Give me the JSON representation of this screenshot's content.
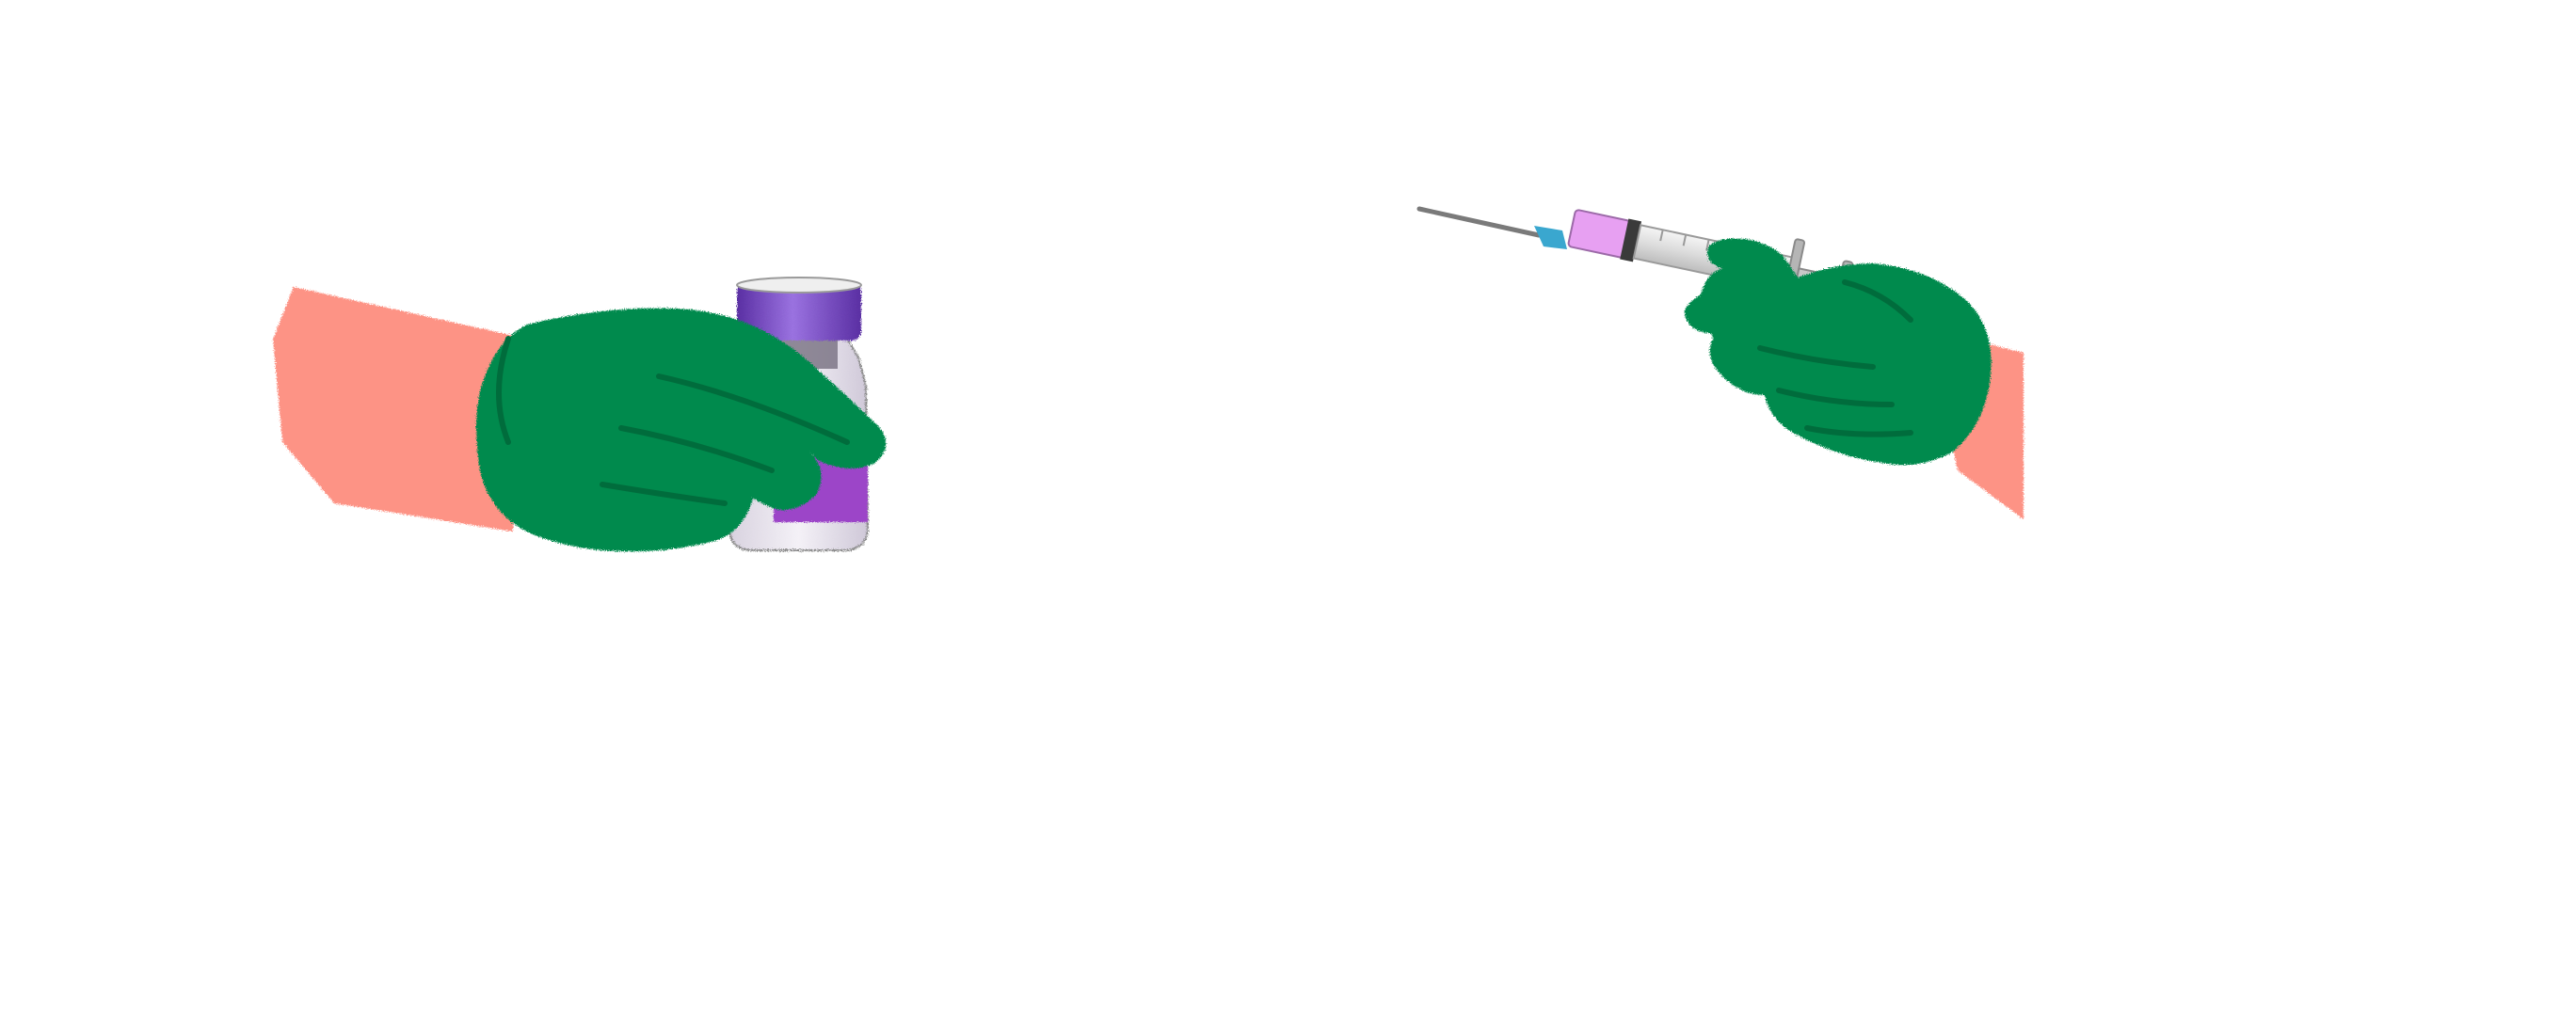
{
  "scene": {
    "background": "#ffffff",
    "colors": {
      "glove": "#008a4e",
      "glove_shadow": "#006c3c",
      "skin": "#fd9385",
      "vial_cap": "#6a3fb3",
      "vial_cap_light": "#8e63d6",
      "vial_label": "#9c44c8",
      "vial_glass": "#e9e4ee",
      "syringe_liquid": "#e7a0f2",
      "syringe_hub": "#3aa7cf",
      "syringe_barrel": "#e3e3e3",
      "needle": "#7a7a7a"
    },
    "illustrations": [
      {
        "name": "left-hand-holding-vial",
        "icon": "gloved-hand-vial-icon"
      },
      {
        "name": "right-hand-holding-syringe",
        "icon": "gloved-hand-syringe-icon"
      }
    ]
  }
}
